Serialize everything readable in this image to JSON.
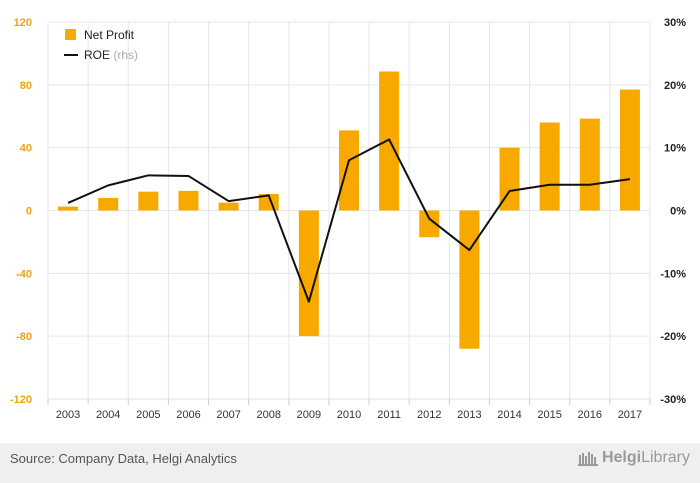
{
  "chart_data": {
    "type": "bar",
    "title": "",
    "categories": [
      "2003",
      "2004",
      "2005",
      "2006",
      "2007",
      "2008",
      "2009",
      "2010",
      "2011",
      "2012",
      "2013",
      "2014",
      "2015",
      "2016",
      "2017"
    ],
    "series": [
      {
        "name": "Net Profit",
        "type": "bar",
        "axis": "left",
        "color": "#f7a900",
        "values": [
          2.5,
          8,
          12,
          12.5,
          5,
          10.5,
          -80,
          51,
          88.5,
          -17,
          -88,
          40,
          56,
          58.5,
          77
        ]
      },
      {
        "name": "ROE",
        "name_suffix": "(rhs)",
        "type": "line",
        "axis": "right",
        "color": "#111111",
        "values": [
          1.2,
          4.0,
          5.6,
          5.5,
          1.5,
          2.4,
          -14.5,
          8.0,
          11.3,
          -1.3,
          -6.3,
          3.1,
          4.1,
          4.1,
          5.0
        ]
      }
    ],
    "ylim_left": [
      -120,
      120
    ],
    "yticks_left": [
      120,
      80,
      40,
      0,
      -40,
      -80,
      -120
    ],
    "ytick_labels_left": [
      "120",
      "80",
      "40",
      "0",
      "-40",
      "-80",
      "-120"
    ],
    "ylim_right": [
      -30,
      30
    ],
    "yticks_right": [
      30,
      20,
      10,
      0,
      -10,
      -20,
      -30
    ],
    "ytick_labels_right": [
      "30%",
      "20%",
      "10%",
      "0%",
      "-10%",
      "-20%",
      "-30%"
    ],
    "legend": "top-left",
    "grid": true
  },
  "footer": {
    "source": "Source: Company Data, Helgi Analytics",
    "brand_part1": "Helgi",
    "brand_part2": "Library"
  },
  "colors": {
    "axis_label_left": "#f0a30a",
    "axis_label_right": "#222222",
    "grid": "#e6e6e6",
    "brand": "#9a9a9a"
  },
  "icons": {
    "brand_logo": "helgi-library-logo-icon"
  }
}
